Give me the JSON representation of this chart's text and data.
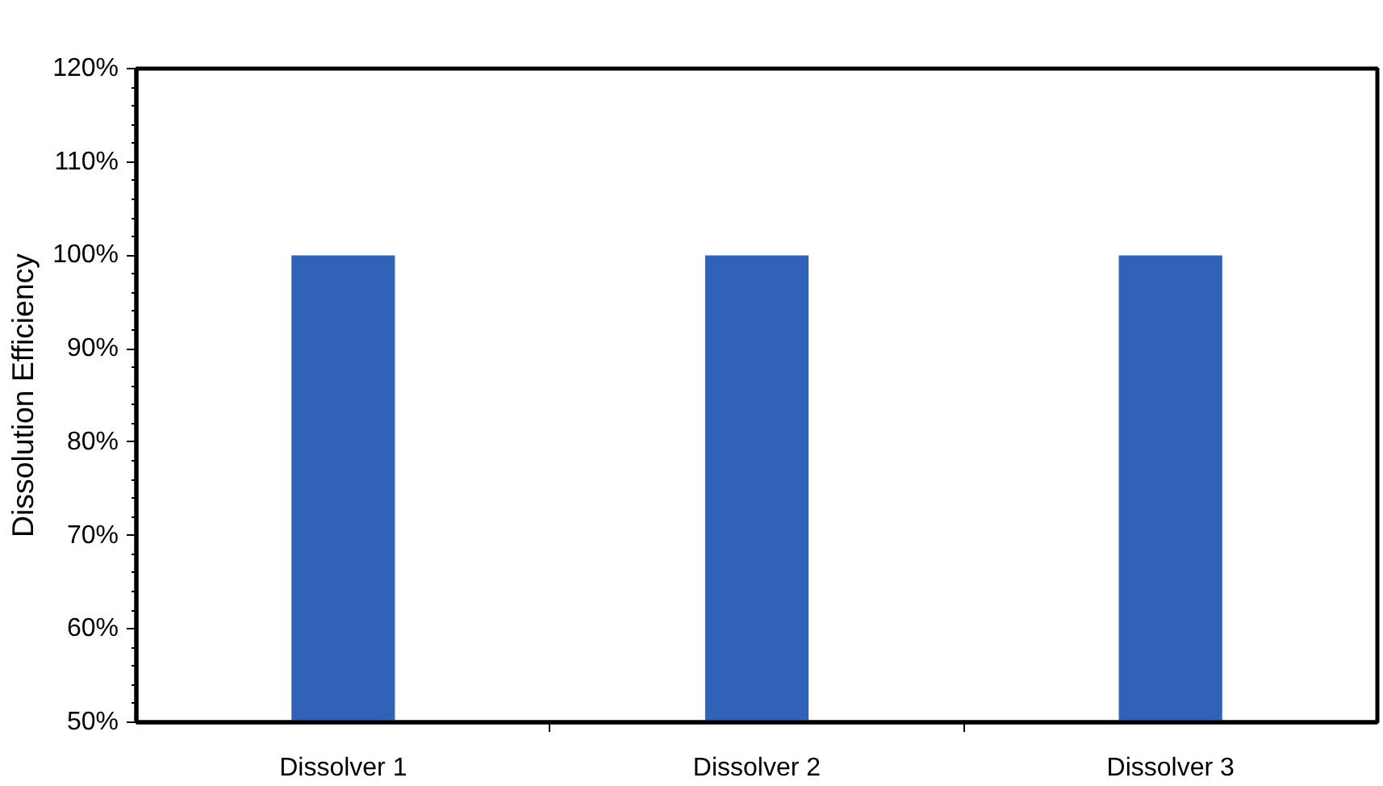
{
  "chart_data": {
    "type": "bar",
    "ylabel": "Dissolution Efficiency",
    "categories": [
      "Dissolver 1",
      "Dissolver 2",
      "Dissolver 3"
    ],
    "values": [
      100,
      100,
      100
    ],
    "color": "#2f62b8",
    "ylim": [
      50,
      120
    ],
    "yticks": [
      {
        "value": 50,
        "label": "50%"
      },
      {
        "value": 60,
        "label": "60%"
      },
      {
        "value": 70,
        "label": "70%"
      },
      {
        "value": 80,
        "label": "80%"
      },
      {
        "value": 90,
        "label": "90%"
      },
      {
        "value": 100,
        "label": "100%"
      },
      {
        "value": 110,
        "label": "110%"
      },
      {
        "value": 120,
        "label": "120%"
      }
    ],
    "grid": false
  }
}
